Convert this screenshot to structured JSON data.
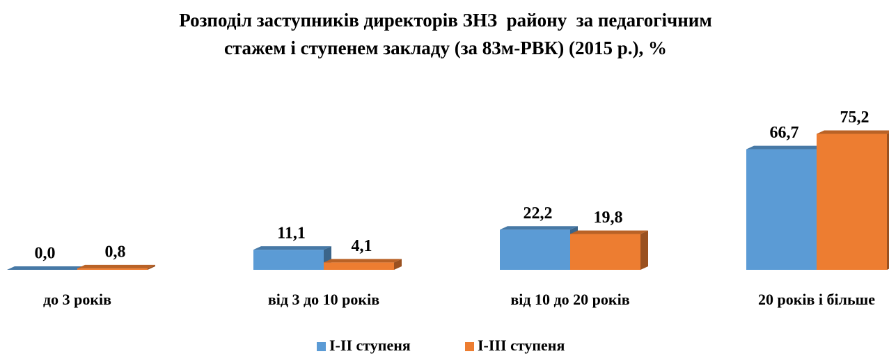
{
  "chart_data": {
    "type": "bar3d",
    "title": [
      "Розподіл заступників директорів ЗНЗ  району  за педагогічним",
      "стажем і ступенем закладу (за 83м-РВК) (2015 р.), %"
    ],
    "categories": [
      "до 3 років",
      "від 3 до 10 років",
      "від 10 до 20 років",
      "20 років і більше"
    ],
    "series": [
      {
        "name": "І-ІІ ступеня",
        "color": "#5b9bd5",
        "values": [
          0,
          11.1,
          22.2,
          66.7
        ],
        "value_labels": [
          "0,0",
          "11,1",
          "22,2",
          "66,7"
        ]
      },
      {
        "name": "І-ІІІ ступеня",
        "color": "#ed7d31",
        "values": [
          0.8,
          4.1,
          19.8,
          75.2
        ],
        "value_labels": [
          "0,8",
          "4,1",
          "19,8",
          "75,2"
        ]
      }
    ]
  }
}
